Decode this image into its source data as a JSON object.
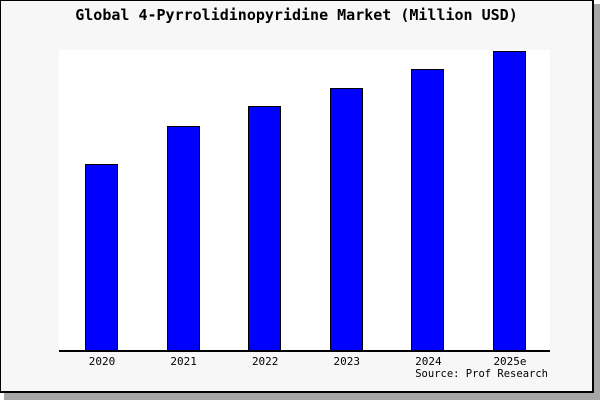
{
  "chart_data": {
    "type": "bar",
    "title": "Global 4-Pyrrolidinopyridine Market (Million USD)",
    "categories": [
      "2020",
      "2021",
      "2022",
      "2023",
      "2024",
      "2025e"
    ],
    "values": [
      62.3,
      75.0,
      81.4,
      87.6,
      93.7,
      100.0
    ],
    "value_scale_note": "relative index estimated from bar heights; no y-axis scale or gridlines shown; 2025e = 100",
    "xlabel": "",
    "ylabel": "",
    "ylim": [
      0,
      100
    ],
    "grid": false,
    "legend": "none",
    "bar_color": "#0000ff",
    "bar_border_color": "#000000"
  },
  "source": {
    "label": "Source: Prof Research"
  },
  "colors": {
    "figure_background": "#f7f7f7",
    "plot_background": "#ffffff",
    "frame_border": "#000000",
    "drop_shadow": "#a6a6a6",
    "text": "#000000"
  }
}
